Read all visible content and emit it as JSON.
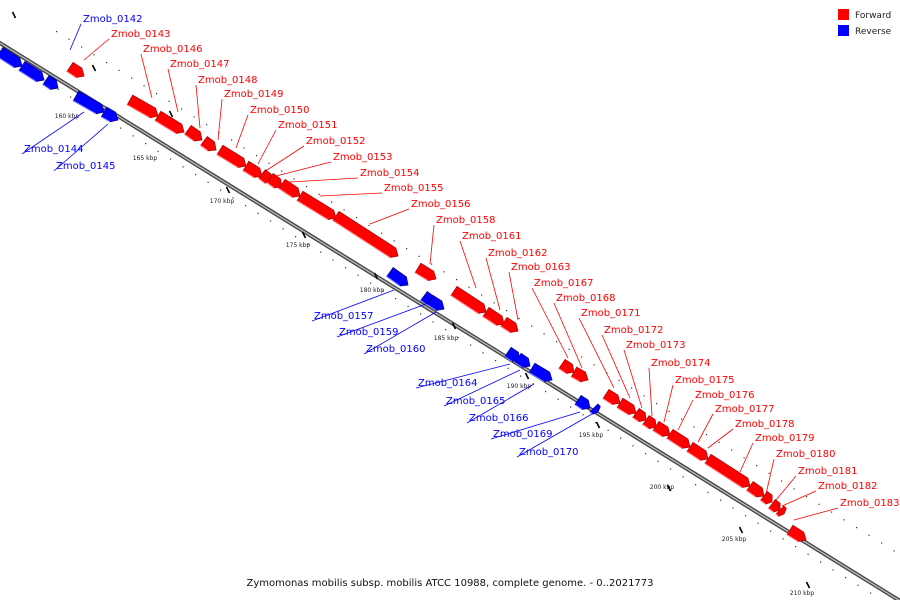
{
  "legend": [
    {
      "label": "Forward",
      "color": "#ff0000"
    },
    {
      "label": "Reverse",
      "color": "#0000ff"
    }
  ],
  "caption": "Zymomonas mobilis subsp. mobilis ATCC 10988, complete genome. - 0..2021773",
  "scale_labels": [
    "160 kbp",
    "165 kbp",
    "170 kbp",
    "175 kbp",
    "180 kbp",
    "185 kbp",
    "190 kbp",
    "195 kbp",
    "200 kbp",
    "205 kbp",
    "210 kbp"
  ],
  "genes": [
    {
      "name": "Zmob_0142",
      "strand": "reverse"
    },
    {
      "name": "Zmob_0143",
      "strand": "forward"
    },
    {
      "name": "Zmob_0144",
      "strand": "reverse"
    },
    {
      "name": "Zmob_0145",
      "strand": "reverse"
    },
    {
      "name": "Zmob_0146",
      "strand": "forward"
    },
    {
      "name": "Zmob_0147",
      "strand": "forward"
    },
    {
      "name": "Zmob_0148",
      "strand": "forward"
    },
    {
      "name": "Zmob_0149",
      "strand": "forward"
    },
    {
      "name": "Zmob_0150",
      "strand": "forward"
    },
    {
      "name": "Zmob_0151",
      "strand": "forward"
    },
    {
      "name": "Zmob_0152",
      "strand": "forward"
    },
    {
      "name": "Zmob_0153",
      "strand": "forward"
    },
    {
      "name": "Zmob_0154",
      "strand": "forward"
    },
    {
      "name": "Zmob_0155",
      "strand": "forward"
    },
    {
      "name": "Zmob_0156",
      "strand": "forward"
    },
    {
      "name": "Zmob_0157",
      "strand": "reverse"
    },
    {
      "name": "Zmob_0158",
      "strand": "forward"
    },
    {
      "name": "Zmob_0159",
      "strand": "reverse"
    },
    {
      "name": "Zmob_0160",
      "strand": "reverse"
    },
    {
      "name": "Zmob_0161",
      "strand": "forward"
    },
    {
      "name": "Zmob_0162",
      "strand": "forward"
    },
    {
      "name": "Zmob_0163",
      "strand": "forward"
    },
    {
      "name": "Zmob_0164",
      "strand": "reverse"
    },
    {
      "name": "Zmob_0165",
      "strand": "reverse"
    },
    {
      "name": "Zmob_0166",
      "strand": "reverse"
    },
    {
      "name": "Zmob_0167",
      "strand": "forward"
    },
    {
      "name": "Zmob_0168",
      "strand": "forward"
    },
    {
      "name": "Zmob_0169",
      "strand": "reverse"
    },
    {
      "name": "Zmob_0170",
      "strand": "reverse"
    },
    {
      "name": "Zmob_0171",
      "strand": "forward"
    },
    {
      "name": "Zmob_0172",
      "strand": "forward"
    },
    {
      "name": "Zmob_0173",
      "strand": "forward"
    },
    {
      "name": "Zmob_0174",
      "strand": "forward"
    },
    {
      "name": "Zmob_0175",
      "strand": "forward"
    },
    {
      "name": "Zmob_0176",
      "strand": "forward"
    },
    {
      "name": "Zmob_0177",
      "strand": "forward"
    },
    {
      "name": "Zmob_0178",
      "strand": "forward"
    },
    {
      "name": "Zmob_0179",
      "strand": "forward"
    },
    {
      "name": "Zmob_0180",
      "strand": "forward"
    },
    {
      "name": "Zmob_0181",
      "strand": "forward"
    },
    {
      "name": "Zmob_0182",
      "strand": "forward"
    },
    {
      "name": "Zmob_0183",
      "strand": "forward"
    }
  ]
}
